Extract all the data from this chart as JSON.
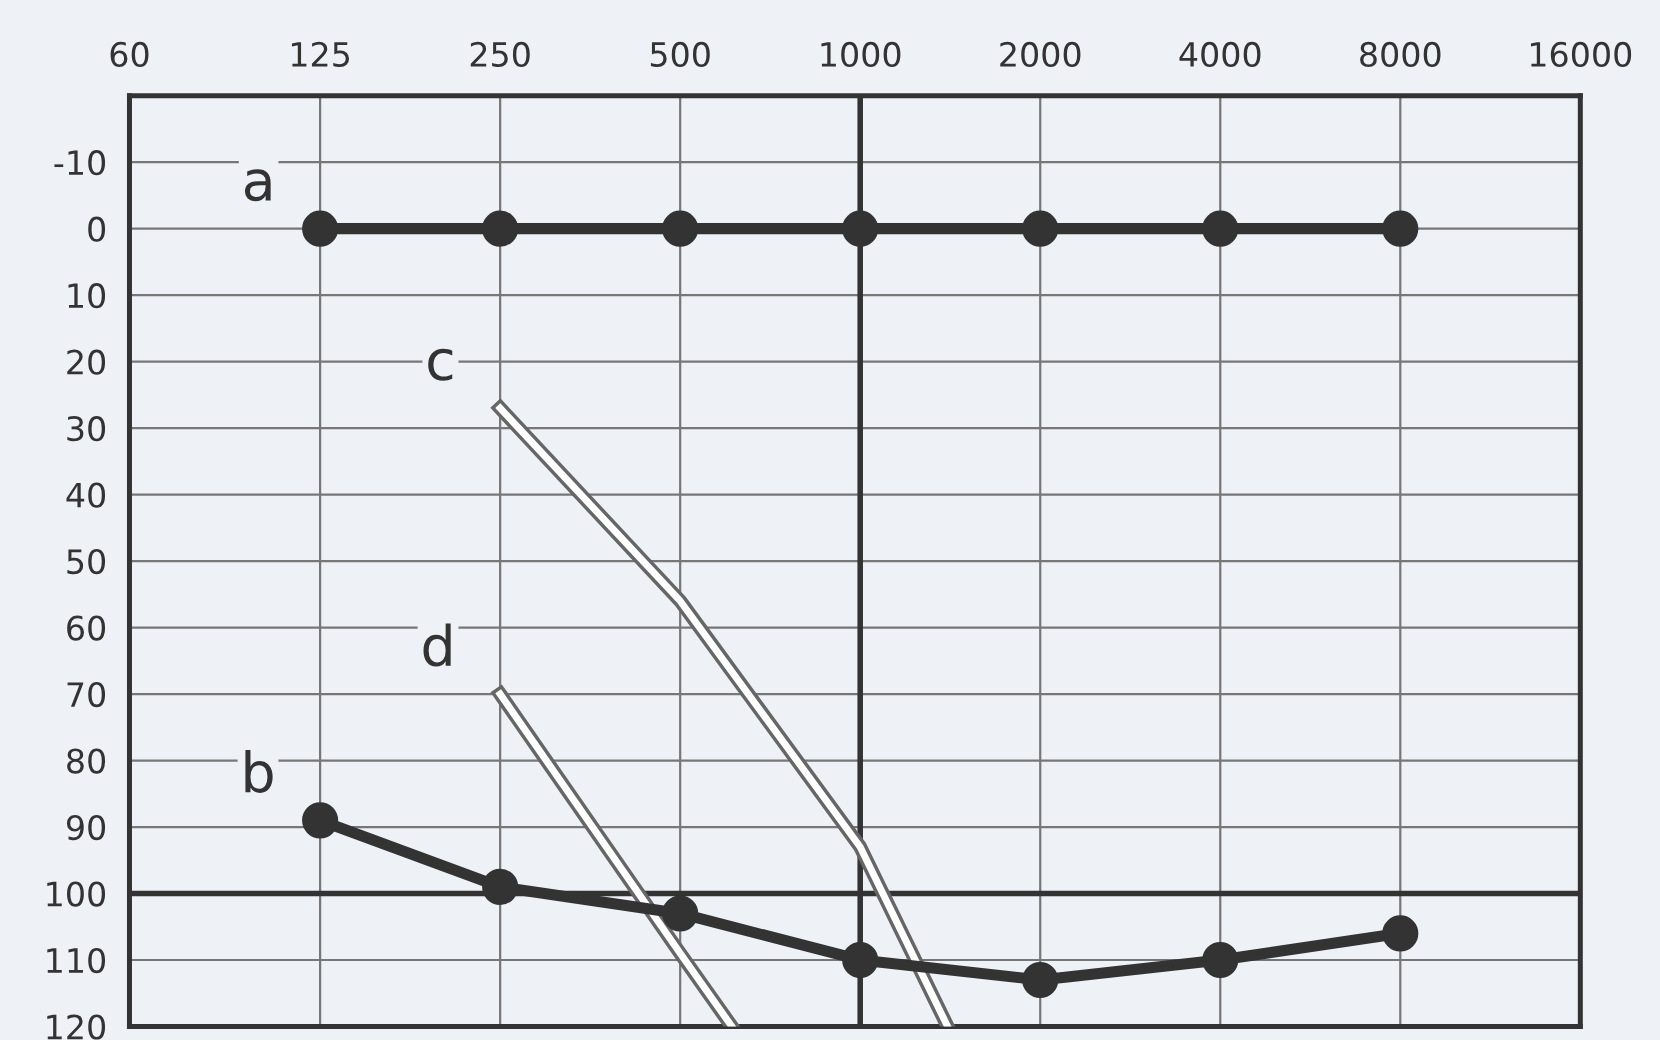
{
  "chart_data": {
    "type": "line",
    "log": "x",
    "xlim": [
      60,
      16000
    ],
    "xticks": [
      60,
      125,
      250,
      500,
      1000,
      2000,
      4000,
      8000,
      16000
    ],
    "ylim": [
      120,
      -20
    ],
    "yticks": [
      -10,
      0,
      10,
      20,
      30,
      40,
      50,
      60,
      70,
      80,
      90,
      100,
      110,
      120
    ],
    "grid": true,
    "legend": false,
    "series": [
      {
        "name": "a",
        "color": "#333333",
        "marker": "circle",
        "x": [
          125,
          250,
          500,
          1000,
          2000,
          4000,
          8000
        ],
        "values": [
          0,
          0,
          0,
          0,
          0,
          0,
          0
        ]
      },
      {
        "name": "b",
        "color": "#333333",
        "marker": "circle",
        "x": [
          125,
          250,
          500,
          1000,
          2000,
          4000,
          8000
        ],
        "values": [
          89,
          99,
          103,
          110,
          113,
          110,
          106
        ]
      },
      {
        "name": "c",
        "color": "#666666",
        "marker": "none",
        "x": [
          250,
          500,
          1000,
          1400
        ],
        "values": [
          27,
          56,
          93,
          120
        ]
      },
      {
        "name": "d",
        "color": "#666666",
        "marker": "none",
        "x": [
          250,
          500,
          610
        ],
        "values": [
          70,
          109,
          120
        ]
      }
    ],
    "ref_lines": [
      {
        "axis": "y",
        "value": 100,
        "label": null
      },
      {
        "axis": "x",
        "value": 1000,
        "label": null
      }
    ]
  }
}
